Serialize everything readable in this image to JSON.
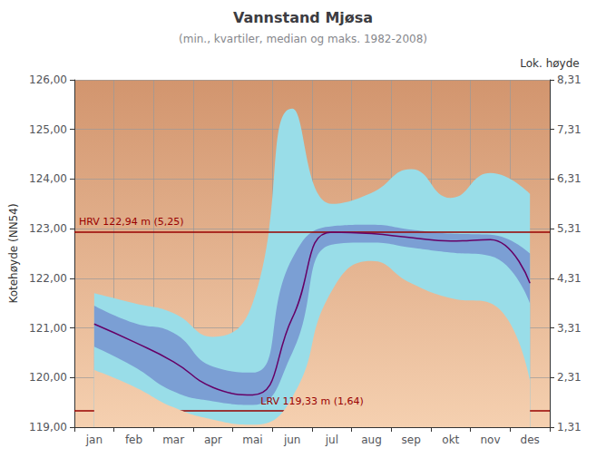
{
  "chart_data": {
    "type": "line",
    "title": "Vannstand Mjøsa",
    "subtitle": "(min., kvartiler, median og maks. 1982-2008)",
    "ylabel": "Kotehøyde (NN54)",
    "y2label": "Lok. høyde",
    "categories": [
      "jan",
      "feb",
      "mar",
      "apr",
      "mai",
      "jun",
      "jul",
      "aug",
      "sep",
      "okt",
      "nov",
      "des"
    ],
    "series": [
      {
        "color": "#660066",
        "type": "line",
        "values": [
          121.08,
          120.72,
          120.32,
          119.8,
          119.65,
          121.2,
          122.93,
          122.9,
          122.82,
          122.75,
          122.78,
          121.9
        ]
      }
    ],
    "bands": [
      {
        "color": "#99DDE8",
        "lower": [
          120.15,
          119.82,
          119.4,
          119.15,
          119.05,
          119.6,
          121.75,
          122.35,
          121.9,
          121.6,
          121.5,
          119.95
        ],
        "upper": [
          121.7,
          121.5,
          121.3,
          120.82,
          121.5,
          125.42,
          123.5,
          123.72,
          124.2,
          123.62,
          124.12,
          123.7
        ]
      },
      {
        "color": "#7B9FD4",
        "lower": [
          120.62,
          120.22,
          119.72,
          119.52,
          119.45,
          120.5,
          122.68,
          122.72,
          122.62,
          122.52,
          122.45,
          121.5
        ],
        "upper": [
          121.45,
          121.1,
          120.9,
          120.22,
          120.1,
          122.4,
          123.05,
          123.08,
          122.98,
          122.9,
          122.88,
          122.5
        ]
      }
    ],
    "hlines": [
      {
        "value": 122.94,
        "label": "HRV 122,94 m (5,25)",
        "color": "#990000"
      },
      {
        "value": 119.33,
        "label": "LRV 119,33 m (1,64)",
        "color": "#990000"
      }
    ],
    "background_colors": [
      "#D2956E",
      "#F5D0B0"
    ],
    "grid": true,
    "grid_color": "#999999",
    "ylim": [
      119.0,
      126.0
    ],
    "yticks": [
      {
        "value": 119.0,
        "label": "119,00"
      },
      {
        "value": 120.0,
        "label": "120,00"
      },
      {
        "value": 121.0,
        "label": "121,00"
      },
      {
        "value": 122.0,
        "label": "122,00"
      },
      {
        "value": 123.0,
        "label": "123,00"
      },
      {
        "value": 124.0,
        "label": "124,00"
      },
      {
        "value": 125.0,
        "label": "125,00"
      },
      {
        "value": 126.0,
        "label": "126,00"
      }
    ],
    "y2lim": [
      119.0,
      126.0
    ],
    "y2ticks": [
      {
        "value": 119.0,
        "label": "1,31"
      },
      {
        "value": 120.0,
        "label": "2,31"
      },
      {
        "value": 121.0,
        "label": "3,31"
      },
      {
        "value": 122.0,
        "label": "4,31"
      },
      {
        "value": 123.0,
        "label": "5,31"
      },
      {
        "value": 124.0,
        "label": "6,31"
      },
      {
        "value": 125.0,
        "label": "7,31"
      },
      {
        "value": 126.0,
        "label": "8,31"
      }
    ]
  }
}
